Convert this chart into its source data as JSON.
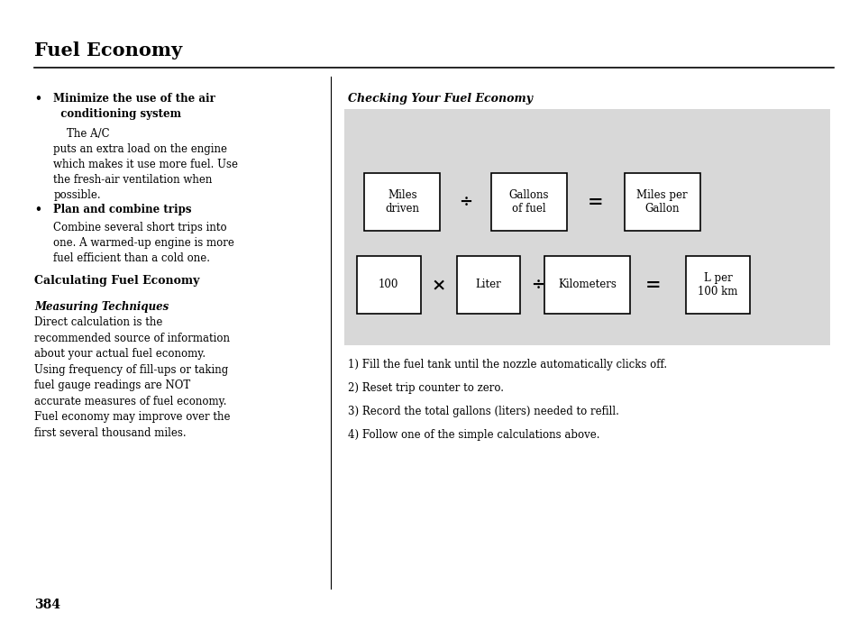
{
  "title": "Fuel Economy",
  "page_number": "384",
  "background_color": "#ffffff",
  "gray_box_color": "#d8d8d8",
  "checking_title": "Checking Your Fuel Economy",
  "instructions": [
    "1) Fill the fuel tank until the nozzle automatically clicks off.",
    "2) Reset trip counter to zero.",
    "3) Record the total gallons (liters) needed to refill.",
    "4) Follow one of the simple calculations above."
  ],
  "calc_title": "Calculating Fuel Economy",
  "measuring_title": "Measuring Techniques",
  "measuring_text": "Direct calculation is the\nrecommended source of information\nabout your actual fuel economy.\nUsing frequency of fill-ups or taking\nfuel gauge readings are NOT\naccurate measures of fuel economy.\nFuel economy may improve over the\nfirst several thousand miles."
}
